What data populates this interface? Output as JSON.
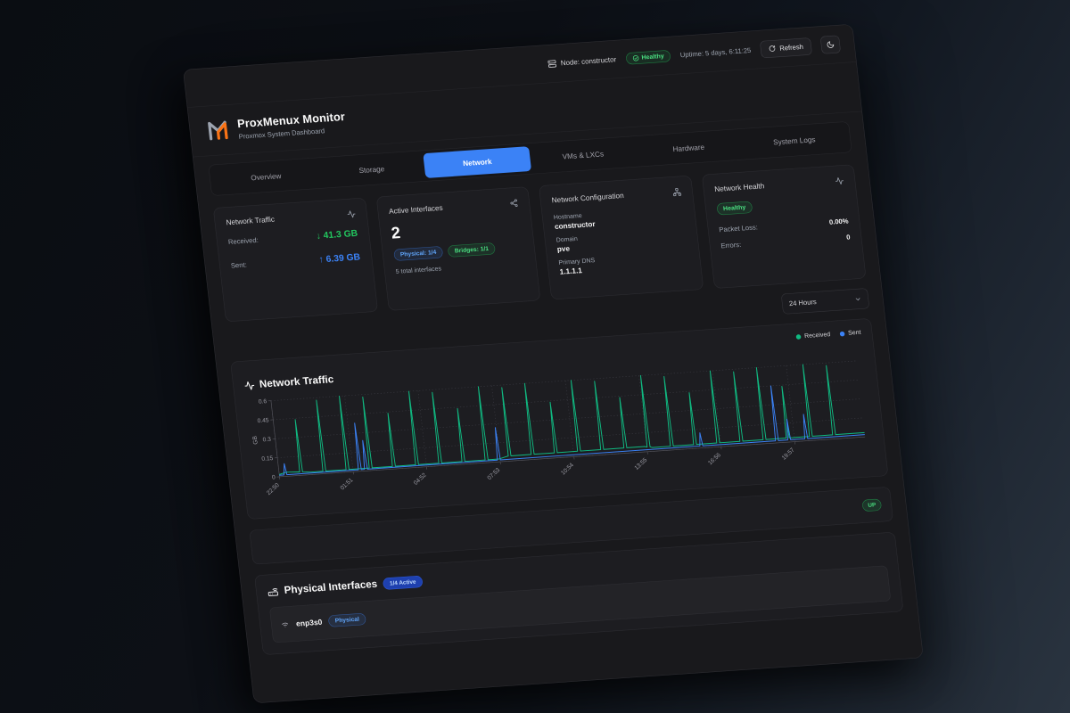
{
  "topbar": {
    "node_label": "Node: constructor",
    "health_badge": "Healthy",
    "uptime": "Uptime: 5 days, 6:11:25",
    "refresh_label": "Refresh"
  },
  "header": {
    "title": "ProxMenux Monitor",
    "subtitle": "Proxmox System Dashboard"
  },
  "tabs": [
    {
      "label": "Overview",
      "active": false
    },
    {
      "label": "Storage",
      "active": false
    },
    {
      "label": "Network",
      "active": true
    },
    {
      "label": "VMs & LXCs",
      "active": false
    },
    {
      "label": "Hardware",
      "active": false
    },
    {
      "label": "System Logs",
      "active": false
    }
  ],
  "cards": {
    "traffic": {
      "title": "Network Traffic",
      "received_label": "Received:",
      "received_value": "↓ 41.3 GB",
      "sent_label": "Sent:",
      "sent_value": "↑ 6.39 GB"
    },
    "interfaces": {
      "title": "Active Interfaces",
      "count": "2",
      "physical_badge": "Physical: 1/4",
      "bridges_badge": "Bridges: 1/1",
      "total": "5 total interfaces"
    },
    "config": {
      "title": "Network Configuration",
      "hostname_label": "Hostname",
      "hostname": "constructor",
      "domain_label": "Domain",
      "domain": "pve",
      "dns_label": "Primary DNS",
      "dns": "1.1.1.1"
    },
    "health": {
      "title": "Network Health",
      "status": "Healthy",
      "packet_loss_label": "Packet Loss:",
      "packet_loss": "0.00%",
      "errors_label": "Errors:",
      "errors": "0"
    }
  },
  "time_select": {
    "value": "24 Hours"
  },
  "chart_card": {
    "title": "Network Traffic",
    "legend": [
      {
        "label": "Received",
        "color": "#10b981"
      },
      {
        "label": "Sent",
        "color": "#3b82f6"
      }
    ],
    "status_badge": "UP"
  },
  "chart_data": {
    "type": "line",
    "title": "Network Traffic",
    "ylabel": "GB",
    "ylim": [
      0,
      0.6
    ],
    "yticks": [
      0,
      0.15,
      0.3,
      0.45,
      0.6
    ],
    "xlim_hours": [
      0,
      24
    ],
    "xticks": [
      {
        "t": 0,
        "label": "22:50"
      },
      {
        "t": 3.02,
        "label": "01:51"
      },
      {
        "t": 6.03,
        "label": "04:52"
      },
      {
        "t": 9.05,
        "label": "07:53"
      },
      {
        "t": 12.07,
        "label": "10:54"
      },
      {
        "t": 15.08,
        "label": "13:55"
      },
      {
        "t": 18.1,
        "label": "16:56"
      },
      {
        "t": 21.12,
        "label": "19:57"
      }
    ],
    "grid": "dotted",
    "legend_position": "top-right",
    "series": [
      {
        "name": "Received",
        "color": "#10b981",
        "base_points": [
          [
            0,
            0.018
          ],
          [
            0.3,
            0.032
          ],
          [
            0.8,
            0.028
          ],
          [
            1.3,
            0.02
          ],
          [
            9,
            0.022
          ],
          [
            9.4,
            0.04
          ],
          [
            15,
            0.042
          ],
          [
            15.3,
            0.03
          ],
          [
            24,
            0.034
          ]
        ],
        "spikes": [
          [
            0.9,
            0.44
          ],
          [
            1.85,
            0.58
          ],
          [
            2.8,
            0.6
          ],
          [
            3.75,
            0.58
          ],
          [
            4.7,
            0.44
          ],
          [
            5.65,
            0.6
          ],
          [
            6.6,
            0.58
          ],
          [
            7.55,
            0.44
          ],
          [
            8.5,
            0.6
          ],
          [
            9.45,
            0.58
          ],
          [
            10.4,
            0.6
          ],
          [
            11.35,
            0.44
          ],
          [
            12.3,
            0.6
          ],
          [
            13.25,
            0.58
          ],
          [
            14.2,
            0.44
          ],
          [
            15.15,
            0.6
          ],
          [
            16.1,
            0.58
          ],
          [
            17.05,
            0.44
          ],
          [
            18.0,
            0.6
          ],
          [
            18.95,
            0.58
          ],
          [
            19.9,
            0.6
          ],
          [
            20.85,
            0.44
          ],
          [
            21.8,
            0.6
          ],
          [
            22.75,
            0.58
          ]
        ]
      },
      {
        "name": "Sent",
        "color": "#3b82f6",
        "base_points": [
          [
            0,
            0.012
          ],
          [
            24,
            0.018
          ]
        ],
        "spikes": [
          [
            0.25,
            0.1
          ],
          [
            3.3,
            0.38
          ],
          [
            3.55,
            0.24
          ],
          [
            9.0,
            0.27
          ],
          [
            17.3,
            0.12
          ],
          [
            20.4,
            0.45
          ],
          [
            20.9,
            0.18
          ],
          [
            21.6,
            0.21
          ]
        ]
      }
    ]
  },
  "physical": {
    "title": "Physical Interfaces",
    "active_badge": "1/4 Active",
    "rows": [
      {
        "name": "enp3s0",
        "badge": "Physical"
      }
    ]
  },
  "colors": {
    "accent_blue": "#3b82f6",
    "green": "#22c55e",
    "chart_received": "#10b981",
    "chart_sent": "#3b82f6",
    "panel_bg": "#19191c",
    "card_bg": "#1d1d21"
  }
}
